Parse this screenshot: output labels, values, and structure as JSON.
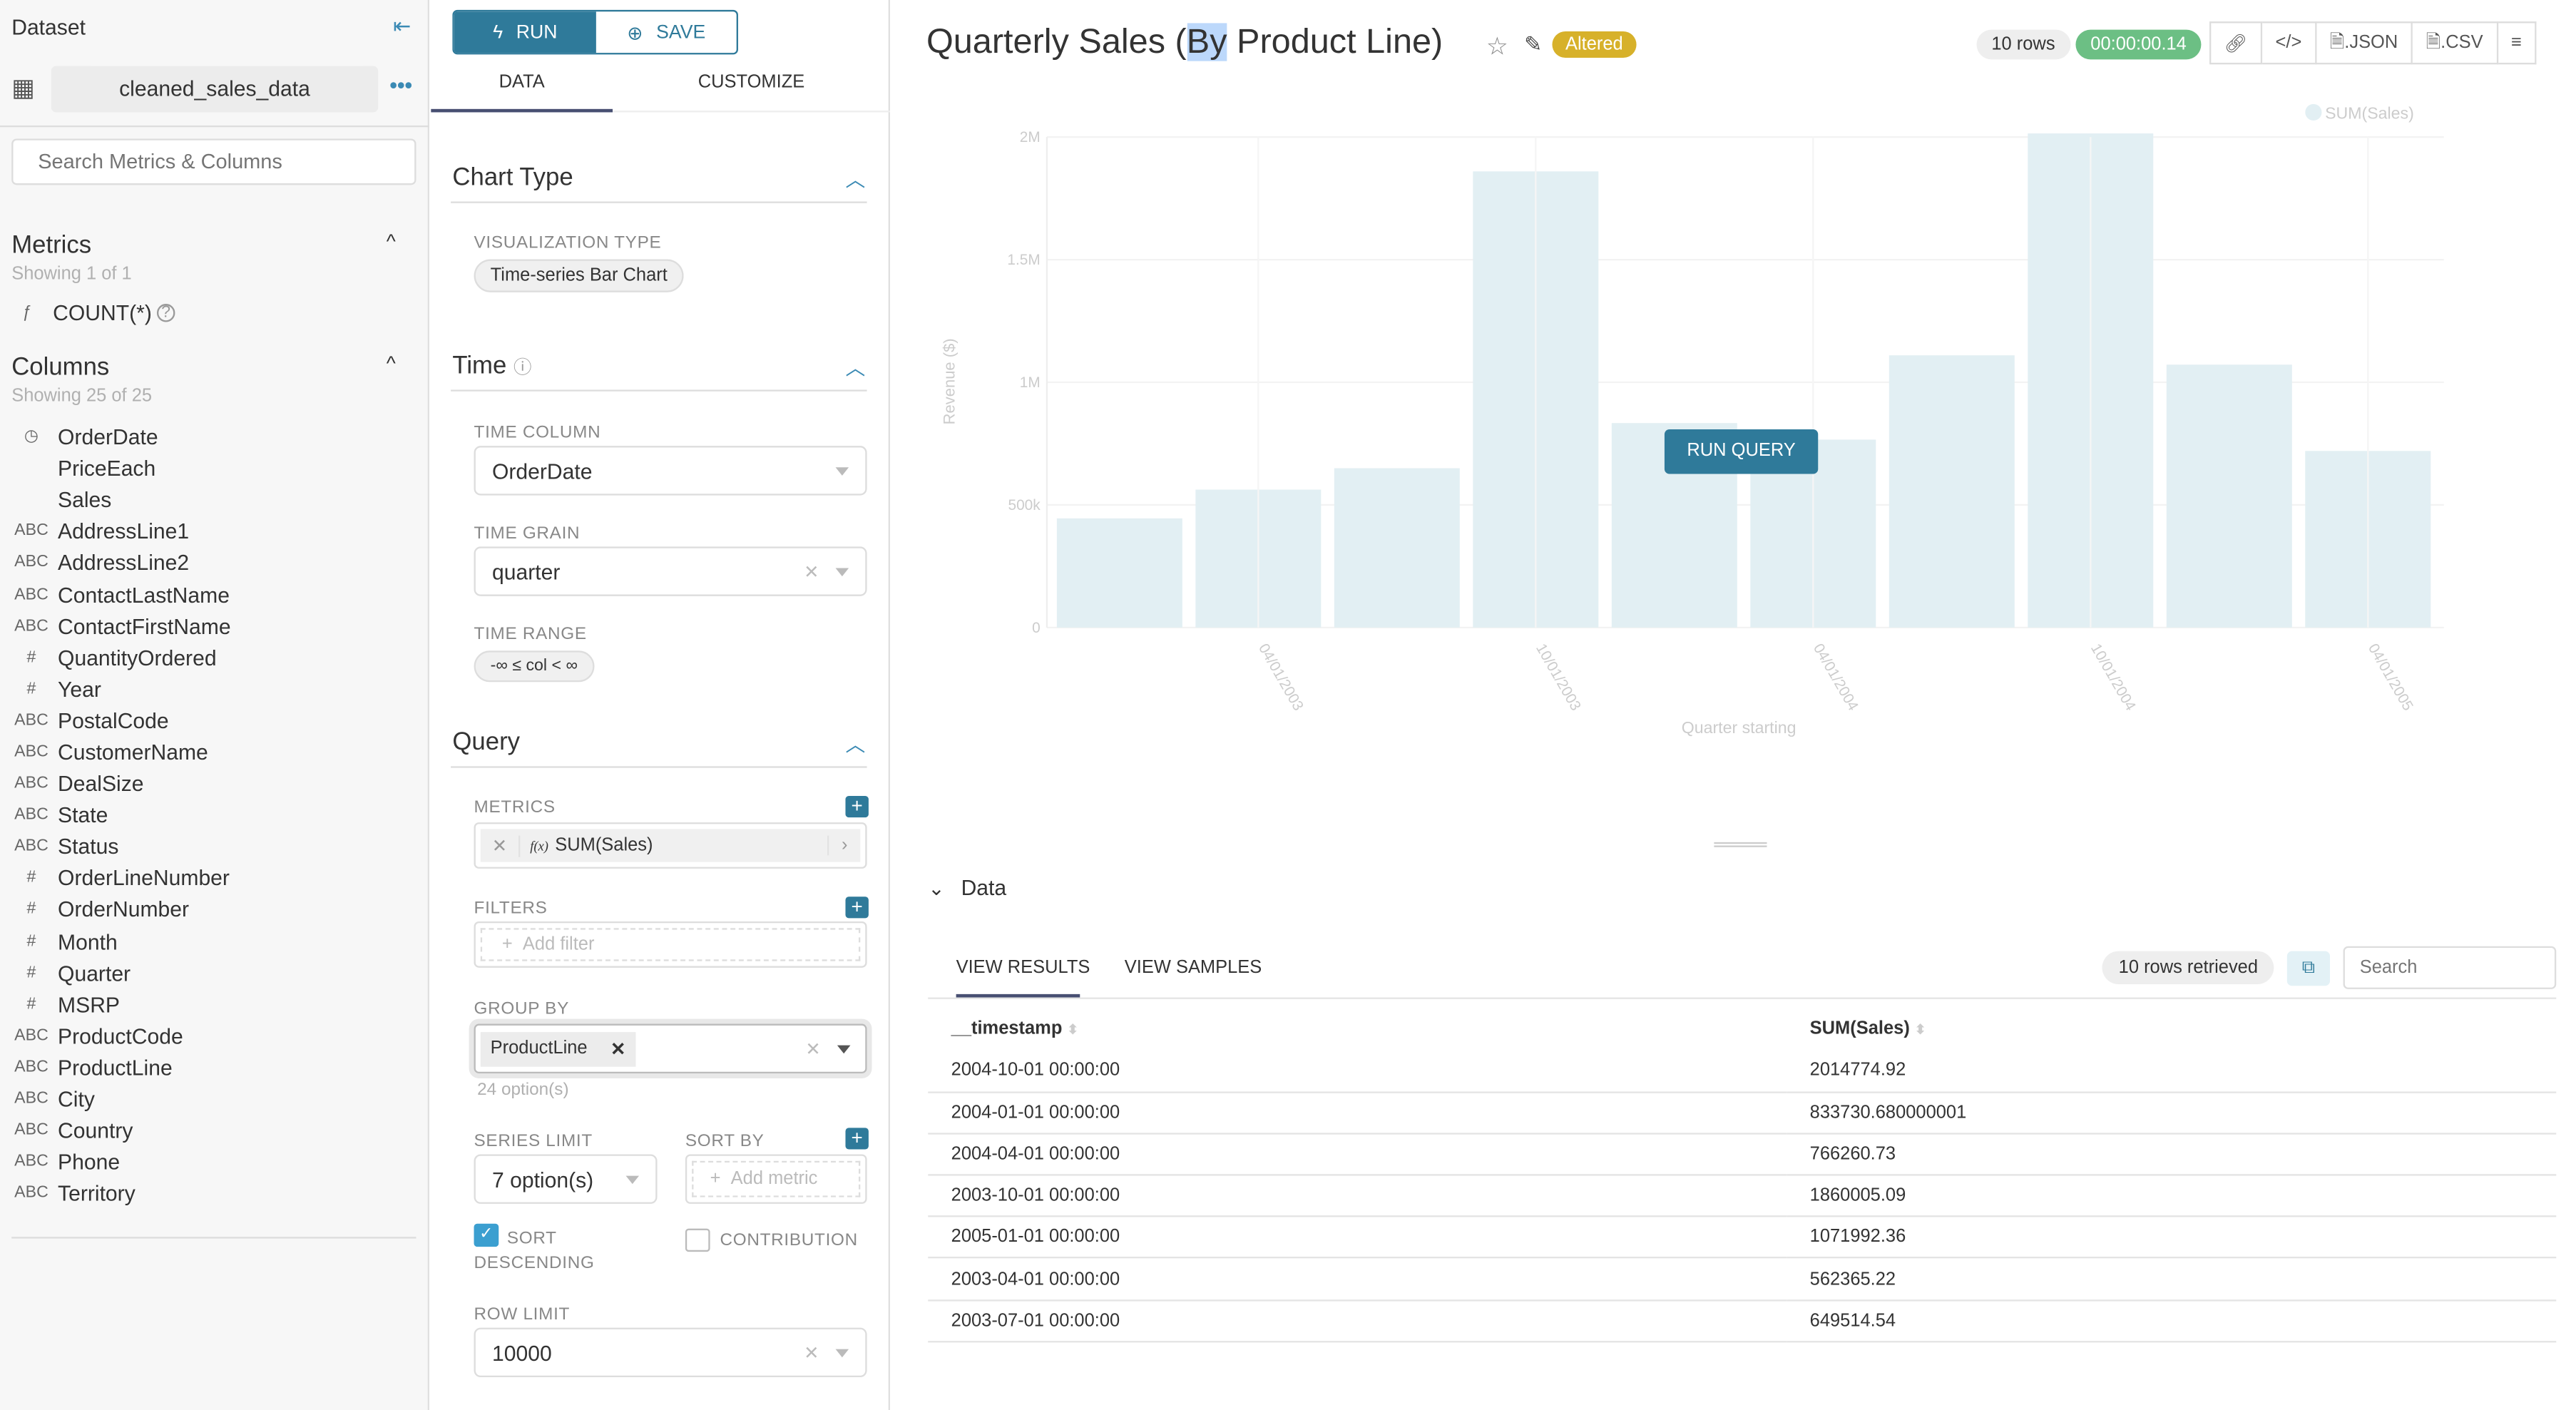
{
  "sidebar": {
    "title": "Dataset",
    "dataset_name": "cleaned_sales_data",
    "search_placeholder": "Search Metrics & Columns",
    "metrics": {
      "title": "Metrics",
      "showing": "Showing 1 of 1",
      "items": [
        {
          "type": "ƒ",
          "name": "COUNT(*)"
        }
      ]
    },
    "columns": {
      "title": "Columns",
      "showing": "Showing 25 of 25",
      "items": [
        {
          "type": "clock",
          "name": "OrderDate"
        },
        {
          "type": "",
          "name": "PriceEach"
        },
        {
          "type": "",
          "name": "Sales"
        },
        {
          "type": "ABC",
          "name": "AddressLine1"
        },
        {
          "type": "ABC",
          "name": "AddressLine2"
        },
        {
          "type": "ABC",
          "name": "ContactLastName"
        },
        {
          "type": "ABC",
          "name": "ContactFirstName"
        },
        {
          "type": "#",
          "name": "QuantityOrdered"
        },
        {
          "type": "#",
          "name": "Year"
        },
        {
          "type": "ABC",
          "name": "PostalCode"
        },
        {
          "type": "ABC",
          "name": "CustomerName"
        },
        {
          "type": "ABC",
          "name": "DealSize"
        },
        {
          "type": "ABC",
          "name": "State"
        },
        {
          "type": "ABC",
          "name": "Status"
        },
        {
          "type": "#",
          "name": "OrderLineNumber"
        },
        {
          "type": "#",
          "name": "OrderNumber"
        },
        {
          "type": "#",
          "name": "Month"
        },
        {
          "type": "#",
          "name": "Quarter"
        },
        {
          "type": "#",
          "name": "MSRP"
        },
        {
          "type": "ABC",
          "name": "ProductCode"
        },
        {
          "type": "ABC",
          "name": "ProductLine"
        },
        {
          "type": "ABC",
          "name": "City"
        },
        {
          "type": "ABC",
          "name": "Country"
        },
        {
          "type": "ABC",
          "name": "Phone"
        },
        {
          "type": "ABC",
          "name": "Territory"
        }
      ]
    }
  },
  "controls": {
    "run": "RUN",
    "save": "SAVE",
    "tabs": [
      "DATA",
      "CUSTOMIZE"
    ],
    "chart_type": {
      "title": "Chart Type",
      "viz_label": "VISUALIZATION TYPE",
      "viz_value": "Time-series Bar Chart"
    },
    "time": {
      "title": "Time",
      "column_label": "TIME COLUMN",
      "column_value": "OrderDate",
      "grain_label": "TIME GRAIN",
      "grain_value": "quarter",
      "range_label": "TIME RANGE",
      "range_value": "-∞ ≤ col < ∞"
    },
    "query": {
      "title": "Query",
      "metrics_label": "METRICS",
      "metric_value": "SUM(Sales)",
      "metric_prefix": "f(x)",
      "filters_label": "FILTERS",
      "filter_placeholder": "Add filter",
      "group_by_label": "GROUP BY",
      "group_by_value": "ProductLine",
      "group_by_options": "24 option(s)",
      "series_limit_label": "SERIES LIMIT",
      "series_limit_value": "7 option(s)",
      "sort_by_label": "SORT BY",
      "sort_by_placeholder": "Add metric",
      "sort_desc_label": "SORT DESCENDING",
      "sort_desc_checked": true,
      "contribution_label": "CONTRIBUTION",
      "contribution_checked": false,
      "row_limit_label": "ROW LIMIT",
      "row_limit_value": "10000"
    }
  },
  "header": {
    "title_pre": "Quarterly Sales (",
    "title_sel": "By",
    "title_post": " Product Line)",
    "badge": "Altered",
    "rows": "10 rows",
    "duration": "00:00:00.14",
    "json": ".JSON",
    "csv": ".CSV",
    "run_query": "RUN QUERY"
  },
  "colors": {
    "accent": "#2f7a9a",
    "bar": "#e2eff3",
    "altered": "#d7b12a",
    "duration": "#6cbf84"
  },
  "chart_data": {
    "type": "bar",
    "xlabel": "Quarter starting",
    "ylabel": "Revenue ($)",
    "legend": [
      "SUM(Sales)"
    ],
    "legend_position": "top-right",
    "ylim": [
      0,
      2000000
    ],
    "yticks": [
      "0",
      "500k",
      "1M",
      "1.5M",
      "2M"
    ],
    "ytick_values": [
      0,
      500000,
      1000000,
      1500000,
      2000000
    ],
    "xtick_labels": [
      "04/01/2003",
      "10/01/2003",
      "04/01/2004",
      "10/01/2004",
      "04/01/2005"
    ],
    "categories": [
      "2003-01-01",
      "2003-04-01",
      "2003-07-01",
      "2003-10-01",
      "2004-01-01",
      "2004-04-01",
      "2004-07-01",
      "2004-10-01",
      "2005-01-01",
      "2005-04-01"
    ],
    "values": [
      445000,
      562365.22,
      649514.54,
      1860005.09,
      833730.68,
      766260.73,
      1110000,
      2014774.92,
      1071992.36,
      720000
    ],
    "grid": true
  },
  "data_panel": {
    "title": "Data",
    "tabs": [
      "VIEW RESULTS",
      "VIEW SAMPLES"
    ],
    "rows_retrieved": "10 rows retrieved",
    "search_placeholder": "Search",
    "columns": [
      "__timestamp",
      "SUM(Sales)"
    ],
    "rows": [
      [
        "2004-10-01 00:00:00",
        "2014774.92"
      ],
      [
        "2004-01-01 00:00:00",
        "833730.680000001"
      ],
      [
        "2004-04-01 00:00:00",
        "766260.73"
      ],
      [
        "2003-10-01 00:00:00",
        "1860005.09"
      ],
      [
        "2005-01-01 00:00:00",
        "1071992.36"
      ],
      [
        "2003-04-01 00:00:00",
        "562365.22"
      ],
      [
        "2003-07-01 00:00:00",
        "649514.54"
      ]
    ]
  }
}
